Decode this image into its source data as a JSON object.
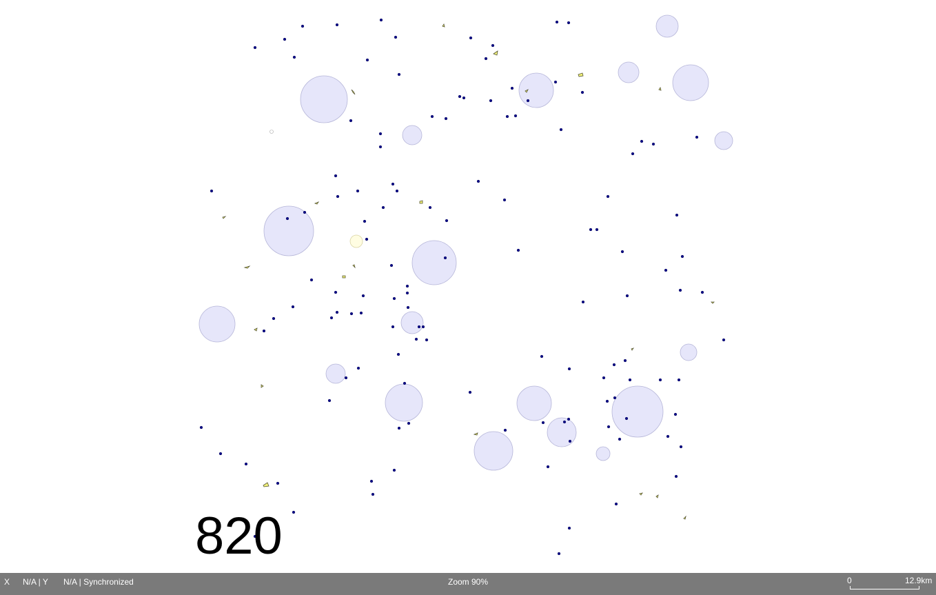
{
  "map": {
    "overlay_label": "820",
    "colors": {
      "buffer_fill": "#e6e6fa",
      "buffer_stroke": "#b5b5d8",
      "point_fill": "#00008b",
      "polygon_fill": "#f2f27a",
      "polygon_stroke": "#555533",
      "highlight_fill": "#fffde2",
      "background": "#ffffff"
    }
  },
  "status_bar": {
    "x_label": "X",
    "y_value": "N/A | Y",
    "sync_value": "N/A | Synchronized",
    "zoom": "Zoom 90%",
    "scale_start": "0",
    "scale_end": "12.9km",
    "background": "#7a7a7a"
  }
}
